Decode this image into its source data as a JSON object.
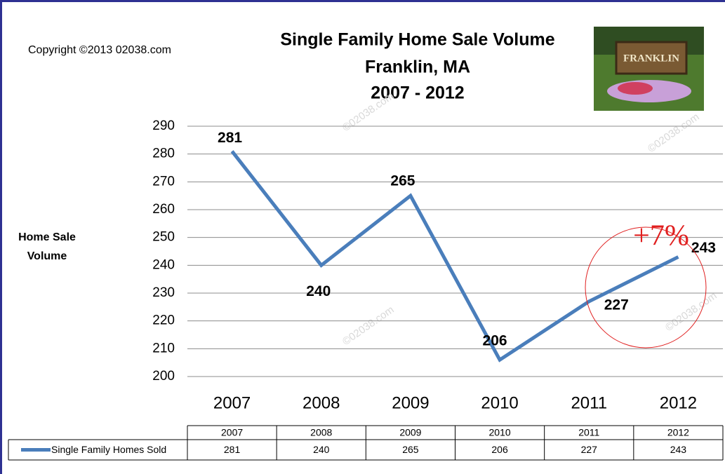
{
  "chart_data": {
    "type": "line",
    "title": "Single Family Home Sale Volume",
    "subtitle": "Franklin, MA",
    "period": "2007 - 2012",
    "copyright": "Copyright ©2013 02038.com",
    "watermark": "©02038.com",
    "photo_sign": "FRANKLIN",
    "y_label": "Home Sale Volume",
    "annotation": "+7%",
    "categories": [
      "2007",
      "2008",
      "2009",
      "2010",
      "2011",
      "2012"
    ],
    "series": [
      {
        "name": "Single Family Homes Sold",
        "color": "#4a7ebb",
        "values": [
          281,
          240,
          265,
          206,
          227,
          243
        ]
      }
    ],
    "ylim": [
      200,
      290
    ],
    "yticks": [
      200,
      210,
      220,
      230,
      240,
      250,
      260,
      270,
      280,
      290
    ],
    "grid": true
  }
}
